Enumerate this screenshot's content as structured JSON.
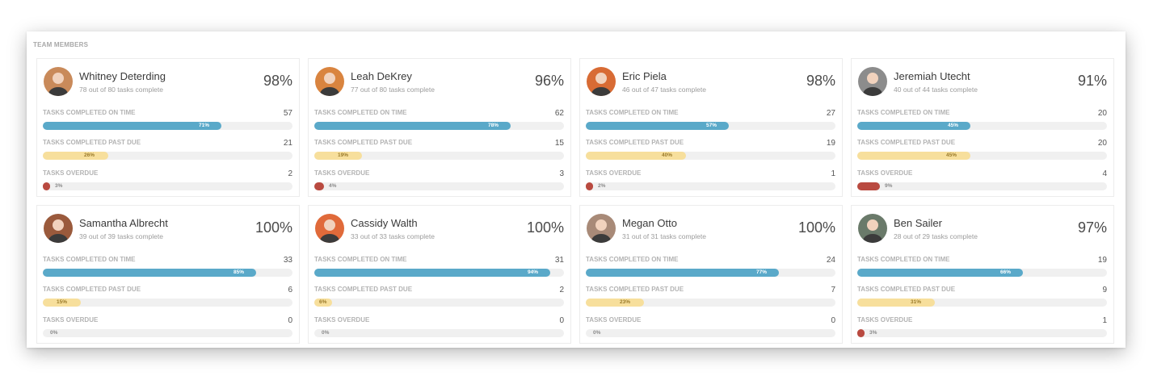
{
  "panel_title": "TEAM MEMBERS",
  "labels": {
    "on_time": "TASKS COMPLETED ON TIME",
    "past_due": "TASKS COMPLETED PAST DUE",
    "overdue": "TASKS OVERDUE"
  },
  "colors": {
    "on_time_bar": "#5aa9c9",
    "past_due_bar": "#f7df9c",
    "overdue_bar": "#b94a40",
    "track": "#f0f0f0"
  },
  "members": [
    {
      "name": "Whitney Deterding",
      "subtitle": "78 out of 80 tasks complete",
      "overall": "98%",
      "avatar_bg": "#c98a5a",
      "on_time": {
        "count": "57",
        "pct_label": "71%",
        "pct": 71
      },
      "past_due": {
        "count": "21",
        "pct_label": "26%",
        "pct": 26
      },
      "overdue": {
        "count": "2",
        "pct_label": "3%",
        "pct": 3
      }
    },
    {
      "name": "Leah DeKrey",
      "subtitle": "77 out of 80 tasks complete",
      "overall": "96%",
      "avatar_bg": "#d9843f",
      "on_time": {
        "count": "62",
        "pct_label": "78%",
        "pct": 78
      },
      "past_due": {
        "count": "15",
        "pct_label": "19%",
        "pct": 19
      },
      "overdue": {
        "count": "3",
        "pct_label": "4%",
        "pct": 4
      }
    },
    {
      "name": "Eric Piela",
      "subtitle": "46 out of 47 tasks complete",
      "overall": "98%",
      "avatar_bg": "#d86b34",
      "on_time": {
        "count": "27",
        "pct_label": "57%",
        "pct": 57
      },
      "past_due": {
        "count": "19",
        "pct_label": "40%",
        "pct": 40
      },
      "overdue": {
        "count": "1",
        "pct_label": "2%",
        "pct": 2
      }
    },
    {
      "name": "Jeremiah Utecht",
      "subtitle": "40 out of 44 tasks complete",
      "overall": "91%",
      "avatar_bg": "#8c8c8c",
      "on_time": {
        "count": "20",
        "pct_label": "45%",
        "pct": 45
      },
      "past_due": {
        "count": "20",
        "pct_label": "45%",
        "pct": 45
      },
      "overdue": {
        "count": "4",
        "pct_label": "9%",
        "pct": 9
      }
    },
    {
      "name": "Samantha Albrecht",
      "subtitle": "39 out of 39 tasks complete",
      "overall": "100%",
      "avatar_bg": "#9a5a3c",
      "on_time": {
        "count": "33",
        "pct_label": "85%",
        "pct": 85
      },
      "past_due": {
        "count": "6",
        "pct_label": "15%",
        "pct": 15
      },
      "overdue": {
        "count": "0",
        "pct_label": "0%",
        "pct": 0
      }
    },
    {
      "name": "Cassidy Walth",
      "subtitle": "33 out of 33 tasks complete",
      "overall": "100%",
      "avatar_bg": "#e06a3a",
      "on_time": {
        "count": "31",
        "pct_label": "94%",
        "pct": 94
      },
      "past_due": {
        "count": "2",
        "pct_label": "6%",
        "pct": 6
      },
      "overdue": {
        "count": "0",
        "pct_label": "0%",
        "pct": 0
      }
    },
    {
      "name": "Megan Otto",
      "subtitle": "31 out of 31 tasks complete",
      "overall": "100%",
      "avatar_bg": "#a88a78",
      "on_time": {
        "count": "24",
        "pct_label": "77%",
        "pct": 77
      },
      "past_due": {
        "count": "7",
        "pct_label": "23%",
        "pct": 23
      },
      "overdue": {
        "count": "0",
        "pct_label": "0%",
        "pct": 0
      }
    },
    {
      "name": "Ben Sailer",
      "subtitle": "28 out of 29 tasks complete",
      "overall": "97%",
      "avatar_bg": "#6a7a6a",
      "on_time": {
        "count": "19",
        "pct_label": "66%",
        "pct": 66
      },
      "past_due": {
        "count": "9",
        "pct_label": "31%",
        "pct": 31
      },
      "overdue": {
        "count": "1",
        "pct_label": "3%",
        "pct": 3
      }
    }
  ]
}
